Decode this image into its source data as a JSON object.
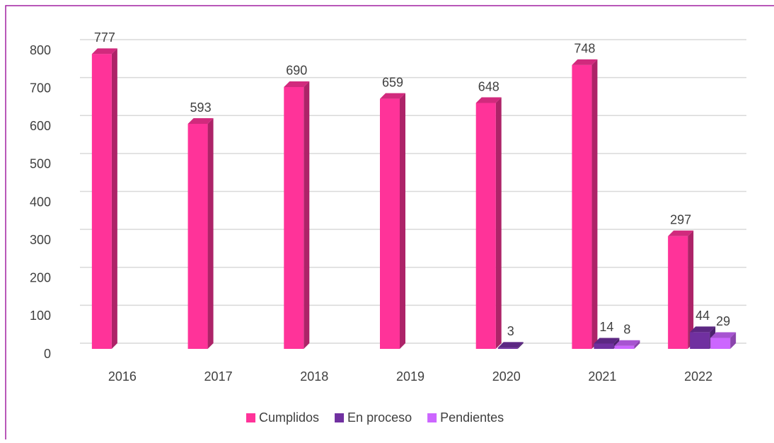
{
  "chart_data": {
    "type": "bar3d",
    "categories": [
      "2016",
      "2017",
      "2018",
      "2019",
      "2020",
      "2021",
      "2022"
    ],
    "series": [
      {
        "name": "Cumplidos",
        "color": "#ff3399",
        "values": [
          777,
          593,
          690,
          659,
          648,
          748,
          297
        ]
      },
      {
        "name": "En proceso",
        "color": "#7030a0",
        "values": [
          null,
          null,
          null,
          null,
          3,
          14,
          44
        ]
      },
      {
        "name": "Pendientes",
        "color": "#cc66ff",
        "values": [
          null,
          null,
          null,
          null,
          null,
          8,
          29
        ]
      }
    ],
    "ylim": [
      0,
      800
    ],
    "yticks": [
      0,
      100,
      200,
      300,
      400,
      500,
      600,
      700,
      800
    ],
    "grid": true,
    "legend": "bottom"
  }
}
